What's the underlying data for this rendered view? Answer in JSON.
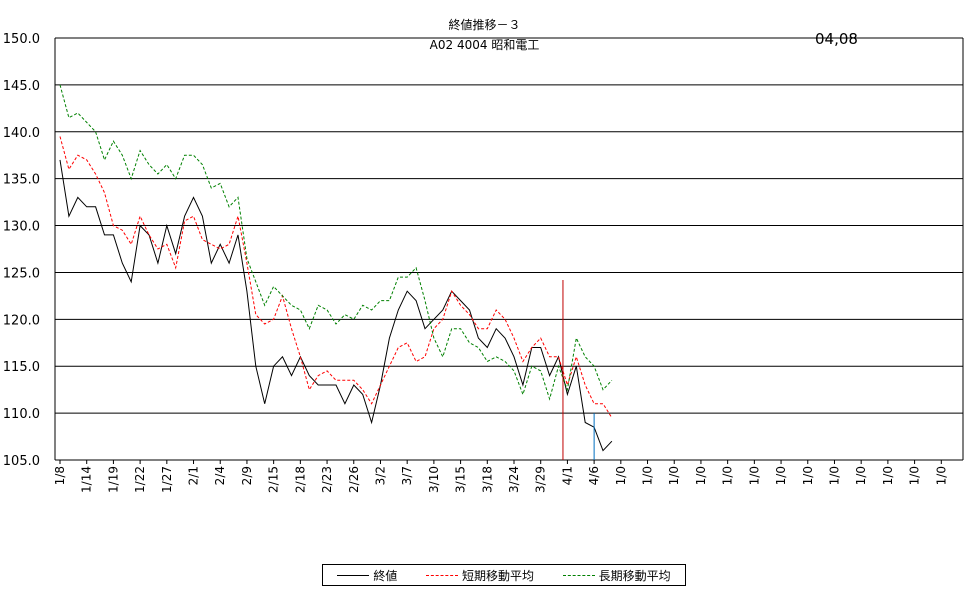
{
  "header": {
    "title": "終値推移－３",
    "subtitle": "A02  4004 昭和電工",
    "stamp": "04,08"
  },
  "chart_data": {
    "type": "line",
    "ylim": [
      105.0,
      150.0
    ],
    "y_ticks": [
      "105.0",
      "110.0",
      "115.0",
      "120.0",
      "125.0",
      "130.0",
      "135.0",
      "140.0",
      "145.0",
      "150.0"
    ],
    "x_tick_labels": [
      "1/8",
      "1/14",
      "1/19",
      "1/22",
      "1/27",
      "2/1",
      "2/4",
      "2/9",
      "2/15",
      "2/18",
      "2/23",
      "2/26",
      "3/2",
      "3/7",
      "3/10",
      "3/15",
      "3/18",
      "3/24",
      "3/29",
      "4/1",
      "4/6",
      "1/0",
      "1/0",
      "1/0",
      "1/0",
      "1/0",
      "1/0",
      "1/0",
      "1/0",
      "1/0",
      "1/0",
      "1/0",
      "1/0",
      "1/0"
    ],
    "grid": "horizontal",
    "legend_position": "bottom",
    "marker_index": 19,
    "series": [
      {
        "name": "終値",
        "color": "#000000",
        "style": "solid",
        "values": [
          137,
          131,
          133,
          132,
          132,
          129,
          129,
          126,
          124,
          130,
          129,
          126,
          130,
          127,
          131,
          133,
          131,
          126,
          128,
          126,
          129,
          123,
          115,
          111,
          115,
          116,
          114,
          116,
          114,
          113,
          113,
          113,
          111,
          113,
          112,
          109,
          113,
          118,
          121,
          123,
          122,
          119,
          120,
          121,
          123,
          122,
          121,
          118,
          117,
          119,
          118,
          116,
          113,
          117,
          117,
          114,
          116,
          112,
          115,
          109,
          108.5,
          106,
          107
        ]
      },
      {
        "name": "短期移動平均",
        "color": "#ff0000",
        "style": "dashed",
        "values": [
          139.5,
          136,
          137.5,
          137,
          135.5,
          133.5,
          130,
          129.5,
          128,
          131,
          129,
          127.5,
          128,
          125.5,
          130.5,
          131,
          128.5,
          128,
          127.5,
          128,
          131,
          126,
          120.5,
          119.5,
          120,
          122.5,
          119,
          116,
          112.5,
          114,
          114.5,
          113.5,
          113.5,
          113.5,
          112.5,
          111,
          113,
          115,
          117,
          117.5,
          115.5,
          116,
          119,
          120,
          123,
          121.5,
          120.5,
          119,
          119,
          121,
          120,
          118,
          115.5,
          117,
          118,
          116,
          116,
          113,
          116,
          113,
          111,
          111,
          109.5
        ]
      },
      {
        "name": "長期移動平均",
        "color": "#008000",
        "style": "dashed",
        "values": [
          145,
          141.5,
          142,
          141,
          140,
          137,
          139,
          137.5,
          135,
          138,
          136.5,
          135.5,
          136.5,
          135,
          137.5,
          137.5,
          136.5,
          134,
          134.5,
          132,
          133,
          126.5,
          124,
          121.5,
          123.5,
          122.5,
          121.5,
          121,
          119,
          121.5,
          121,
          119.5,
          120.5,
          120,
          121.5,
          121,
          122,
          122,
          124.5,
          124.5,
          125.5,
          122,
          118,
          116,
          119,
          119,
          117.5,
          117,
          115.5,
          116,
          115.5,
          114.5,
          112,
          115,
          114.5,
          111.5,
          115,
          112.5,
          118,
          116,
          115,
          112.5,
          113.5
        ]
      }
    ]
  },
  "legend": {
    "items": [
      "終値",
      "短期移動平均",
      "長期移動平均"
    ]
  },
  "colors": {
    "gridline": "#000000",
    "marker_line": "#c00000",
    "blue_line": "#0070c0"
  }
}
